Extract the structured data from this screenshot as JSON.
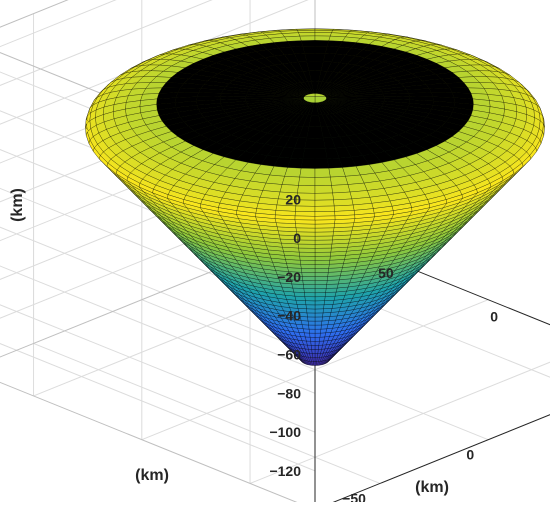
{
  "chart_data": {
    "type": "surface3d",
    "title": "",
    "xlabel": "(km)",
    "ylabel": "(km)",
    "zlabel": "(km)",
    "xlim": [
      -80,
      80
    ],
    "ylim": [
      -80,
      80
    ],
    "zlim": [
      -140,
      30
    ],
    "xticks": [
      -50,
      0,
      50
    ],
    "yticks": [
      -50,
      0,
      50
    ],
    "zticks": [
      20,
      0,
      -20,
      -40,
      -60,
      -80,
      -100,
      -120
    ],
    "surface": {
      "shape": "inverted cone with rounded rim",
      "apex_z": -135,
      "rim_z": -15,
      "top_z": 0,
      "rim_radius": 75,
      "colormap": "parula",
      "grid": true
    },
    "grid": true,
    "colors": {
      "low": "#3e26a8",
      "mid": "#1fa3aa",
      "high": "#f9e61d",
      "mesh": "#000000"
    }
  }
}
